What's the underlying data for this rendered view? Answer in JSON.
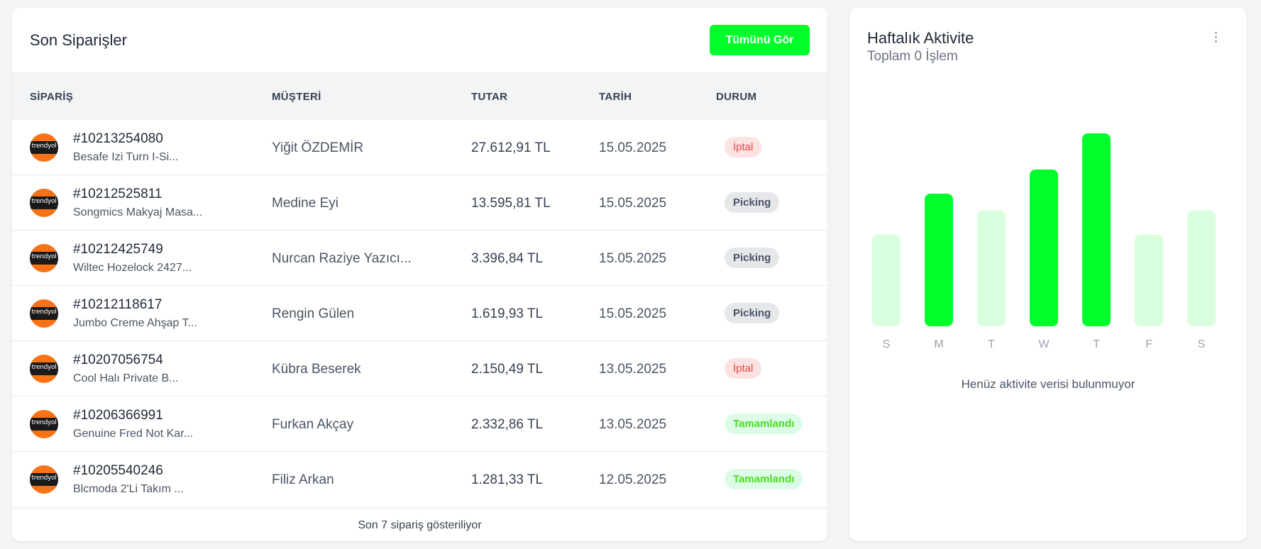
{
  "orders_card": {
    "title": "Son Siparişler",
    "view_all_label": "Tümünü Gör",
    "columns": [
      "SİPARİŞ",
      "MÜŞTERİ",
      "TUTAR",
      "TARİH",
      "DURUM"
    ],
    "logo_text": "trendyol",
    "rows": [
      {
        "id": "#10213254080",
        "product": "Besafe Izi Turn I-Si...",
        "customer": "Yiğit ÖZDEMİR",
        "amount": "27.612,91 TL",
        "date": "15.05.2025",
        "status": "İptal",
        "status_type": "cancel"
      },
      {
        "id": "#10212525811",
        "product": "Songmics Makyaj Masa...",
        "customer": "Medine Eyi",
        "amount": "13.595,81 TL",
        "date": "15.05.2025",
        "status": "Picking",
        "status_type": "picking"
      },
      {
        "id": "#10212425749",
        "product": "Wiltec Hozelock 2427...",
        "customer": "Nurcan Raziye Yazıcı...",
        "amount": "3.396,84 TL",
        "date": "15.05.2025",
        "status": "Picking",
        "status_type": "picking"
      },
      {
        "id": "#10212118617",
        "product": "Jumbo Creme Ahşap T...",
        "customer": "Rengin Gülen",
        "amount": "1.619,93 TL",
        "date": "15.05.2025",
        "status": "Picking",
        "status_type": "picking"
      },
      {
        "id": "#10207056754",
        "product": "Cool Halı Private B...",
        "customer": "Kübra Beserek",
        "amount": "2.150,49 TL",
        "date": "13.05.2025",
        "status": "İptal",
        "status_type": "cancel"
      },
      {
        "id": "#10206366991",
        "product": "Genuine Fred Not Kar...",
        "customer": "Furkan Akçay",
        "amount": "2.332,86 TL",
        "date": "13.05.2025",
        "status": "Tamamlandı",
        "status_type": "done"
      },
      {
        "id": "#10205540246",
        "product": "Blcmoda 2'Li Takım ...",
        "customer": "Filiz Arkan",
        "amount": "1.281,33 TL",
        "date": "12.05.2025",
        "status": "Tamamlandı",
        "status_type": "done"
      }
    ],
    "footer": "Son 7 sipariş gösteriliyor"
  },
  "activity_card": {
    "title": "Haftalık Aktivite",
    "subtitle": "Toplam 0 İşlem",
    "menu_icon": "more-vertical-icon",
    "empty_message": "Henüz aktivite verisi bulunmuyor"
  },
  "colors": {
    "accent": "#00ff2a",
    "accent_light": "#d9ffdf",
    "cancel_bg": "#fde2e2",
    "cancel_text": "#ef4444",
    "picking_bg": "#e5e7eb",
    "done_bg": "#dcfce7",
    "done_text": "#4ade20"
  },
  "chart_data": {
    "type": "bar",
    "categories": [
      "S",
      "M",
      "T",
      "W",
      "T",
      "F",
      "S"
    ],
    "values": [
      38,
      55,
      48,
      65,
      80,
      38,
      48
    ],
    "highlighted": [
      false,
      true,
      false,
      true,
      true,
      false,
      false
    ],
    "ylim": [
      0,
      100
    ],
    "grid": false,
    "yaxis_visible": false
  }
}
